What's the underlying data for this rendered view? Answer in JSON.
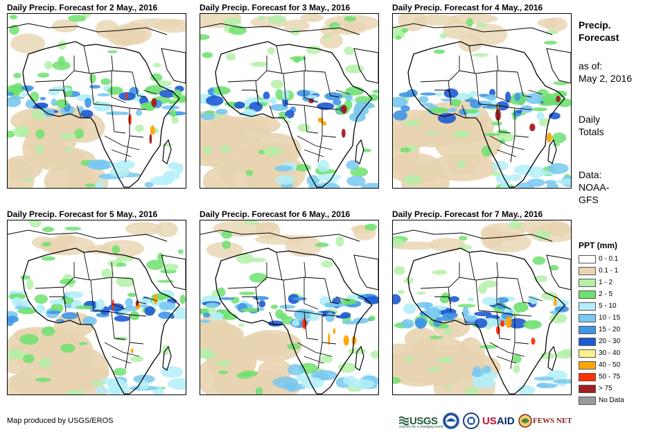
{
  "panels": [
    {
      "title": "Daily Precip. Forecast for 2 May., 2016"
    },
    {
      "title": "Daily Precip. Forecast for 3 May., 2016"
    },
    {
      "title": "Daily Precip. Forecast for 4 May., 2016"
    },
    {
      "title": "Daily Precip. Forecast for 5 May., 2016"
    },
    {
      "title": "Daily Precip. Forecast for 6 May., 2016"
    },
    {
      "title": "Daily Precip. Forecast for 7 May., 2016"
    }
  ],
  "side": {
    "title_line1": "Precip.",
    "title_line2": "Forecast",
    "asof_line1": "as of:",
    "asof_line2": "May 2, 2016",
    "totals_line1": "Daily",
    "totals_line2": "Totals",
    "data_line1": "Data:",
    "data_line2": "NOAA-",
    "data_line3": "GFS"
  },
  "legend": {
    "title": "PPT (mm)",
    "items": [
      {
        "label": "0 - 0.1",
        "color": "#ffffff"
      },
      {
        "label": "0.1 - 1",
        "color": "#e8d4b0"
      },
      {
        "label": "1 - 2",
        "color": "#b4f0a8"
      },
      {
        "label": "2 - 5",
        "color": "#6ee070"
      },
      {
        "label": "5 - 10",
        "color": "#b4eef8"
      },
      {
        "label": "10 - 15",
        "color": "#78c8f0"
      },
      {
        "label": "15 - 20",
        "color": "#4196e6"
      },
      {
        "label": "20 - 30",
        "color": "#1e5ad2"
      },
      {
        "label": "30 - 40",
        "color": "#fff08c"
      },
      {
        "label": "40 - 50",
        "color": "#ffa500"
      },
      {
        "label": "50 - 75",
        "color": "#ff3200"
      },
      {
        "label": "> 75",
        "color": "#a01e1e"
      },
      {
        "label": "No Data",
        "color": "#9a9a9a"
      }
    ]
  },
  "credit": "Map produced by USGS/EROS",
  "logos": {
    "usgs": "USGS",
    "usgs_tagline": "science for a changing world",
    "usaid_prefix": "US",
    "usaid_suffix": "AID",
    "fews": "FEWS NET"
  }
}
